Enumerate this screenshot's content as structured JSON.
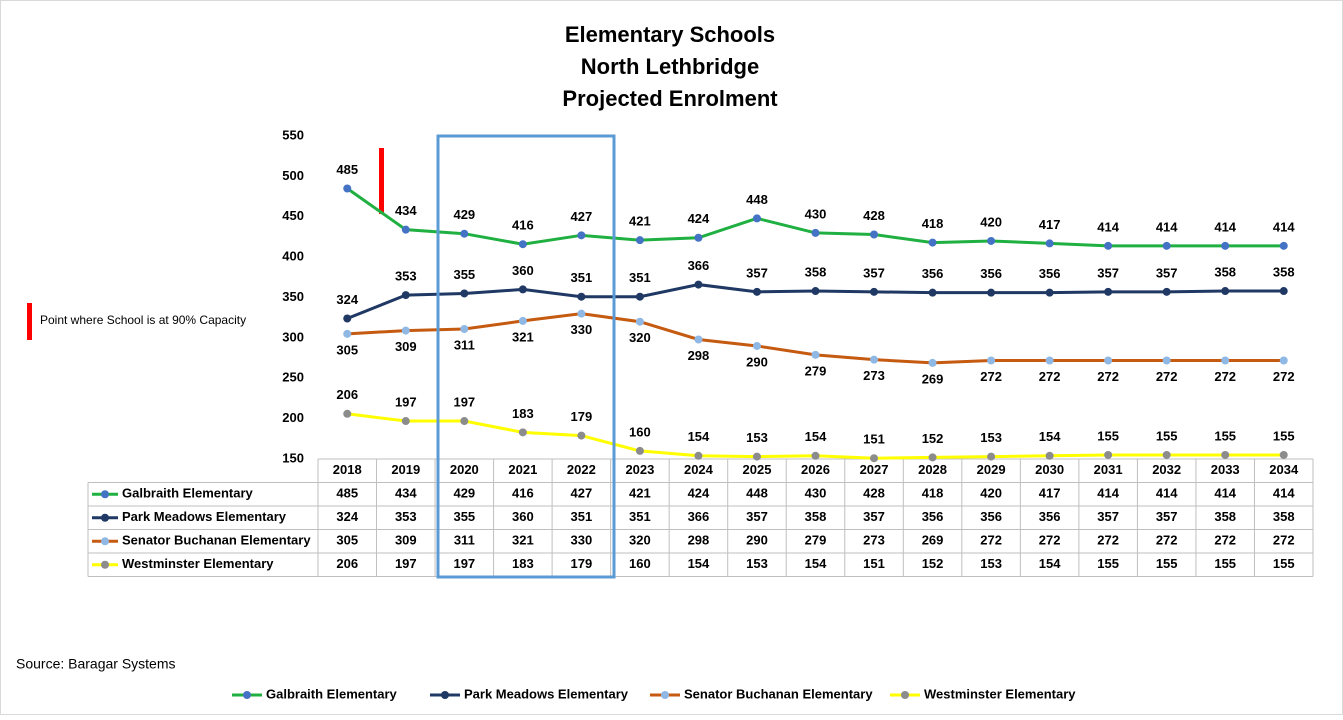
{
  "chart_data": {
    "type": "line",
    "title": [
      "Elementary Schools",
      "North Lethbridge",
      "Projected Enrolment"
    ],
    "categories": [
      "2018",
      "2019",
      "2020",
      "2021",
      "2022",
      "2023",
      "2024",
      "2025",
      "2026",
      "2027",
      "2028",
      "2029",
      "2030",
      "2031",
      "2032",
      "2033",
      "2034"
    ],
    "ylim": [
      150,
      550
    ],
    "yticks": [
      150,
      200,
      250,
      300,
      350,
      400,
      450,
      500,
      550
    ],
    "series": [
      {
        "name": "Galbraith Elementary",
        "color": "#1fb041",
        "marker_color": "#4472c4",
        "label_position": "above",
        "values": [
          485,
          434,
          429,
          416,
          427,
          421,
          424,
          448,
          430,
          428,
          418,
          420,
          417,
          414,
          414,
          414,
          414
        ]
      },
      {
        "name": "Park Meadows Elementary",
        "color": "#1f3864",
        "marker_color": "#1f3864",
        "label_position": "above",
        "values": [
          324,
          353,
          355,
          360,
          351,
          351,
          366,
          357,
          358,
          357,
          356,
          356,
          356,
          357,
          357,
          358,
          358
        ]
      },
      {
        "name": "Senator Buchanan Elementary",
        "color": "#c55a11",
        "marker_color": "#8fb8e4",
        "label_position": "below",
        "values": [
          305,
          309,
          311,
          321,
          330,
          320,
          298,
          290,
          279,
          273,
          269,
          272,
          272,
          272,
          272,
          272,
          272
        ]
      },
      {
        "name": "Westminster Elementary",
        "color": "#ffff00",
        "marker_color": "#8c8c8c",
        "label_position": "above",
        "values": [
          206,
          197,
          197,
          183,
          179,
          160,
          154,
          153,
          154,
          151,
          152,
          153,
          154,
          155,
          155,
          155,
          155
        ]
      }
    ],
    "annotation": "Point where School is at 90% Capacity",
    "source": "Source: Baragar Systems"
  }
}
